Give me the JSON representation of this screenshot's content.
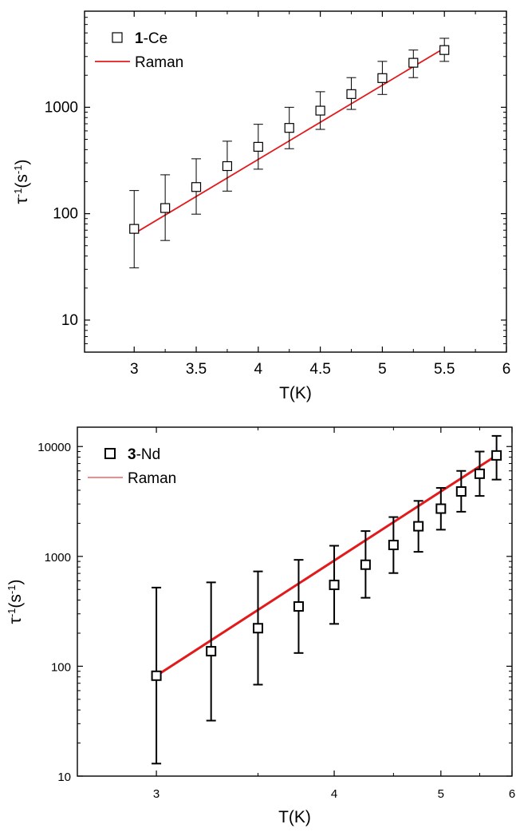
{
  "chart_data": [
    {
      "type": "scatter",
      "xlabel": "T(K)",
      "ylabel": "τ-1(s-1)",
      "ylabel_parts": {
        "base": "τ",
        "sup1": "-1",
        "mid": "(s",
        "sup2": "-1",
        "end": ")"
      },
      "yscale": "log",
      "xlim": [
        2.6,
        6.0
      ],
      "ylim": [
        5,
        8000
      ],
      "x_ticks": [
        3,
        3.5,
        4,
        4.5,
        5,
        5.5,
        6
      ],
      "x_tick_labels": [
        "3",
        "3.5",
        "4",
        "4.5",
        "5",
        "5.5",
        "6"
      ],
      "y_ticks": [
        10,
        100,
        1000
      ],
      "y_tick_labels": [
        "10",
        "100",
        "1000"
      ],
      "legend": {
        "placement": "top-left",
        "entries": [
          {
            "marker": "square",
            "label_bold": "1",
            "label_rest": "-Ce"
          },
          {
            "marker": "line",
            "label": "Raman"
          }
        ]
      },
      "series": [
        {
          "name": "1-Ce",
          "marker": "open-square",
          "color": "#000000",
          "points": [
            {
              "x": 3.0,
              "y": 72,
              "lo": 31,
              "hi": 165
            },
            {
              "x": 3.25,
              "y": 113,
              "lo": 56,
              "hi": 232
            },
            {
              "x": 3.5,
              "y": 178,
              "lo": 99,
              "hi": 328
            },
            {
              "x": 3.75,
              "y": 280,
              "lo": 163,
              "hi": 480
            },
            {
              "x": 4.0,
              "y": 425,
              "lo": 262,
              "hi": 692
            },
            {
              "x": 4.25,
              "y": 640,
              "lo": 408,
              "hi": 1000
            },
            {
              "x": 4.5,
              "y": 930,
              "lo": 620,
              "hi": 1400
            },
            {
              "x": 4.75,
              "y": 1330,
              "lo": 955,
              "hi": 1900
            },
            {
              "x": 5.0,
              "y": 1880,
              "lo": 1320,
              "hi": 2700
            },
            {
              "x": 5.25,
              "y": 2620,
              "lo": 1900,
              "hi": 3450
            },
            {
              "x": 5.5,
              "y": 3450,
              "lo": 2700,
              "hi": 4450
            }
          ]
        },
        {
          "name": "Raman",
          "type": "line",
          "color": "#e31a1c",
          "x": [
            3.0,
            5.5
          ],
          "y": [
            65,
            3600
          ]
        }
      ]
    },
    {
      "type": "scatter",
      "xlabel": "T(K)",
      "ylabel": "τ-1(s-1)",
      "ylabel_parts": {
        "base": "τ",
        "sup1": "-1",
        "mid": "(s",
        "sup2": "-1",
        "end": ")"
      },
      "yscale": "log",
      "xscale": "reciprocal",
      "xlim": [
        2.7,
        6.0
      ],
      "ylim": [
        10,
        15000
      ],
      "x_ticks": [
        3,
        4,
        5,
        6
      ],
      "x_tick_labels": [
        "3",
        "4",
        "5",
        "6"
      ],
      "y_ticks": [
        10,
        100,
        1000,
        10000
      ],
      "y_tick_labels": [
        "10",
        "100",
        "1000",
        "10000"
      ],
      "legend": {
        "placement": "top-left",
        "entries": [
          {
            "marker": "square",
            "label_bold": "3",
            "label_rest": "-Nd"
          },
          {
            "marker": "line",
            "label": "Raman"
          }
        ]
      },
      "series": [
        {
          "name": "3-Nd",
          "marker": "open-square",
          "color": "#000000",
          "points": [
            {
              "x": 3.0,
              "y": 82,
              "lo": 13,
              "hi": 520
            },
            {
              "x": 3.25,
              "y": 137,
              "lo": 32,
              "hi": 580
            },
            {
              "x": 3.5,
              "y": 222,
              "lo": 68,
              "hi": 730
            },
            {
              "x": 3.75,
              "y": 350,
              "lo": 132,
              "hi": 930
            },
            {
              "x": 4.0,
              "y": 550,
              "lo": 243,
              "hi": 1250
            },
            {
              "x": 4.25,
              "y": 840,
              "lo": 420,
              "hi": 1700
            },
            {
              "x": 4.5,
              "y": 1270,
              "lo": 705,
              "hi": 2280
            },
            {
              "x": 4.75,
              "y": 1880,
              "lo": 1100,
              "hi": 3200
            },
            {
              "x": 5.0,
              "y": 2720,
              "lo": 1750,
              "hi": 4200
            },
            {
              "x": 5.25,
              "y": 3900,
              "lo": 2550,
              "hi": 6000
            },
            {
              "x": 5.5,
              "y": 5650,
              "lo": 3550,
              "hi": 9000
            },
            {
              "x": 5.75,
              "y": 8300,
              "lo": 5000,
              "hi": 12500
            }
          ]
        },
        {
          "name": "Raman",
          "type": "line",
          "color": "#e31a1c",
          "x": [
            3.0,
            5.75
          ],
          "y": [
            82,
            8300
          ]
        }
      ]
    }
  ]
}
